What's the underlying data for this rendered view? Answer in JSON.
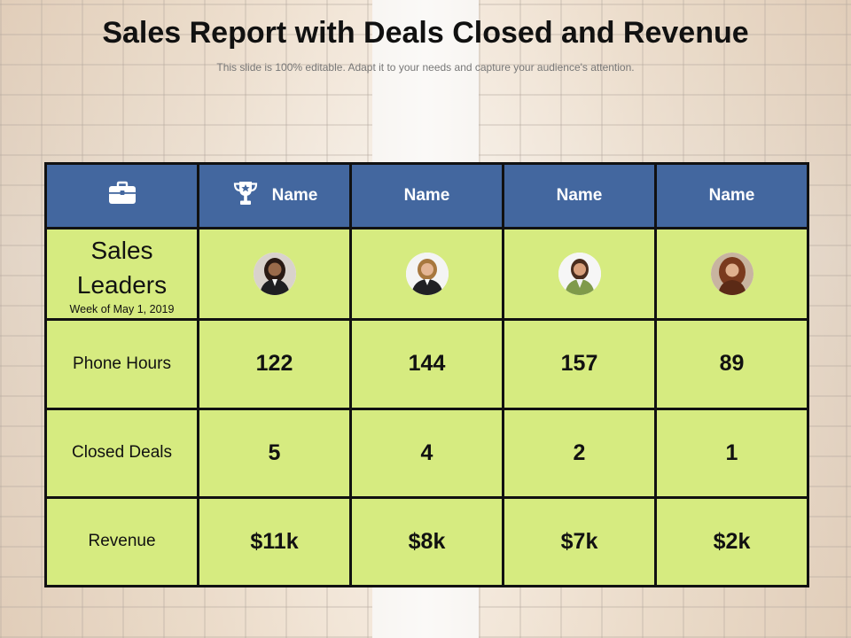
{
  "title": "Sales Report with Deals Closed and Revenue",
  "subtitle": "This slide is 100% editable. Adapt it to your needs and capture your audience's attention.",
  "icons": {
    "briefcase": "briefcase-icon",
    "trophy": "trophy-icon"
  },
  "colors": {
    "header": "#43679f",
    "cell": "#d6eb80",
    "border": "#111111"
  },
  "header": {
    "names": [
      "Name",
      "Name",
      "Name",
      "Name"
    ]
  },
  "leaders": {
    "title_line1": "Sales",
    "title_line2": "Leaders",
    "week": "Week of May 1, 2019"
  },
  "rows": [
    {
      "label": "Phone Hours",
      "values": [
        "122",
        "144",
        "157",
        "89"
      ]
    },
    {
      "label": "Closed Deals",
      "values": [
        "5",
        "4",
        "2",
        "1"
      ]
    },
    {
      "label": "Revenue",
      "values": [
        "$11k",
        "$8k",
        "$7k",
        "$2k"
      ]
    }
  ]
}
